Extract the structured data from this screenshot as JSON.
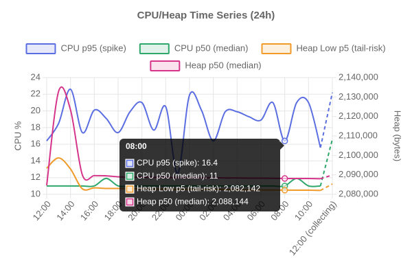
{
  "chart_data": {
    "type": "line",
    "title": "CPU/Heap Time Series (24h)",
    "y_label": "CPU %",
    "y2_label": "Heap (bytes)",
    "categories": [
      "12:00",
      null,
      "14:00",
      null,
      "16:00",
      null,
      "18:00",
      null,
      "20:00",
      null,
      "22:00",
      null,
      "00:00",
      null,
      "02:00",
      null,
      "04:00",
      null,
      "06:00",
      null,
      "08:00",
      null,
      "10:00",
      null,
      "12:00 (collecting)"
    ],
    "ylim": [
      10,
      24
    ],
    "yticks": [
      10,
      12,
      14,
      16,
      18,
      20,
      22,
      24
    ],
    "y2lim": [
      2080000,
      2140000
    ],
    "y2ticks": [
      {
        "value": 2080000,
        "label": "2,080,000"
      },
      {
        "value": 2090000,
        "label": "2,090,000"
      },
      {
        "value": 2100000,
        "label": "2,100,000"
      },
      {
        "value": 2110000,
        "label": "2,110,000"
      },
      {
        "value": 2120000,
        "label": "2,120,000"
      },
      {
        "value": 2130000,
        "label": "2,130,000"
      },
      {
        "value": 2140000,
        "label": "2,140,000"
      }
    ],
    "grid": true,
    "smooth": true,
    "dashed_last_segment": true,
    "legend": "top",
    "series": [
      {
        "name": "CPU p95 (spike)",
        "color": "#5b6ee1",
        "values": [
          16.4,
          18.5,
          22.6,
          17.4,
          20.1,
          19.1,
          17.4,
          19.9,
          21,
          17.7,
          20.5,
          12.5,
          21.9,
          20.1,
          16.4,
          19.9,
          19.9,
          19.3,
          18.9,
          21,
          16.4,
          21,
          21,
          15.6,
          22.2
        ]
      },
      {
        "name": "CPU p50 (median)",
        "color": "#2ea76a",
        "values": [
          11,
          11,
          11,
          11,
          11,
          11.9,
          11,
          11,
          11,
          11,
          11,
          11,
          11,
          11,
          11,
          11,
          11,
          11,
          11,
          11,
          11,
          11.9,
          11,
          11,
          16.6
        ]
      },
      {
        "name": "Heap Low p5 (tail-risk)",
        "color": "#f09a2a",
        "axis": "y2",
        "values": [
          2093400,
          2098700,
          2093000,
          2082800,
          2083300,
          2083000,
          2083000,
          2082800,
          2082900,
          2082600,
          2082700,
          2082500,
          2082600,
          2082400,
          2082500,
          2082400,
          2082300,
          2082300,
          2082200,
          2082200,
          2082142,
          2082100,
          2082100,
          2082000,
          2085300
        ]
      },
      {
        "name": "Heap p50 (median)",
        "color": "#d6338a",
        "axis": "y2",
        "values": [
          2084600,
          2132900,
          2123400,
          2089900,
          2089600,
          2089500,
          2089000,
          2088800,
          2088800,
          2088700,
          2088700,
          2088600,
          2088600,
          2088500,
          2088500,
          2088400,
          2088400,
          2088300,
          2088300,
          2088200,
          2088144,
          2088100,
          2088100,
          2088000,
          2089900
        ]
      }
    ],
    "tooltip": {
      "title": "08:00",
      "items": [
        "CPU p95 (spike): 16.4",
        "CPU p50 (median): 11",
        "Heap Low p5 (tail-risk): 2,082,142",
        "Heap p50 (median): 2,088,144"
      ]
    }
  }
}
